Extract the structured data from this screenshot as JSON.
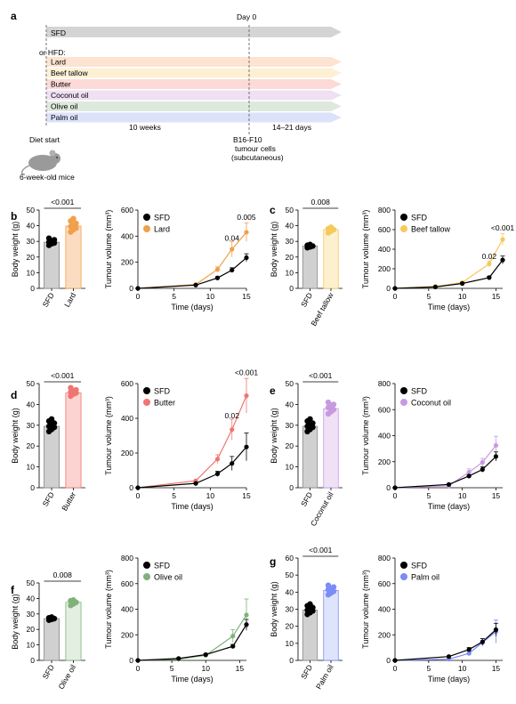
{
  "panel_a": {
    "label": "a",
    "day0": "Day 0",
    "sfd": "SFD",
    "or_hfd": "or HFD:",
    "diets": [
      "Lard",
      "Beef tallow",
      "Butter",
      "Coconut oil",
      "Olive oil",
      "Palm oil"
    ],
    "weeks": "10 weeks",
    "days": "14–21 days",
    "diet_start": "Diet start",
    "mice": "6-week-old mice",
    "tumour": [
      "B16-F10",
      "tumour cells",
      "(subcutaneous)"
    ],
    "colors": {
      "sfd": "#d4d4d4",
      "Lard": "#fce3d2",
      "Beef tallow": "#fdf0d5",
      "Butter": "#fcdad7",
      "Coconut oil": "#f0e0f4",
      "Olive oil": "#dde9dc",
      "Palm oil": "#dde2fb"
    }
  },
  "chart_data": [
    {
      "panel": "b",
      "type": "bar",
      "ylabel": "Body weight (g)",
      "ylim": [
        0,
        50
      ],
      "yticks": [
        0,
        10,
        20,
        30,
        40,
        50
      ],
      "categories": [
        "SFD",
        "Lard"
      ],
      "values": [
        29.5,
        39.8
      ],
      "errors": [
        1.5,
        1.8
      ],
      "color": "#f0a04a",
      "fill": "#fcdcc0",
      "pvalue": "<0.001",
      "points": [
        [
          27.5,
          28.5,
          29,
          29.5,
          30,
          31,
          32
        ],
        [
          36,
          37.5,
          38.5,
          39.5,
          40.5,
          41.5,
          43,
          44.5
        ]
      ]
    },
    {
      "panel": "b",
      "type": "line",
      "xlabel": "Time (days)",
      "ylabel": "Tumour volume (mm³)",
      "ylim": [
        0,
        600
      ],
      "yticks": [
        0,
        200,
        400,
        600
      ],
      "xlim": [
        0,
        15
      ],
      "xticks": [
        0,
        5,
        10,
        15
      ],
      "series": [
        {
          "name": "SFD",
          "color": "#000000",
          "x": [
            0,
            8,
            11,
            13,
            15
          ],
          "y": [
            0,
            25,
            80,
            140,
            235
          ],
          "err": [
            0,
            5,
            10,
            18,
            30
          ]
        },
        {
          "name": "Lard",
          "color": "#f0a04a",
          "x": [
            0,
            8,
            11,
            13,
            15
          ],
          "y": [
            0,
            30,
            145,
            300,
            430
          ],
          "err": [
            0,
            5,
            20,
            60,
            70
          ]
        }
      ],
      "annotations": [
        {
          "text": "0.04",
          "x": 13,
          "y": 365
        },
        {
          "text": "0.005",
          "x": 15,
          "y": 525
        }
      ]
    },
    {
      "panel": "c",
      "type": "bar",
      "ylabel": "Body weight (g)",
      "ylim": [
        0,
        50
      ],
      "yticks": [
        0,
        10,
        20,
        30,
        40,
        50
      ],
      "categories": [
        "SFD",
        "Beef tallow"
      ],
      "values": [
        27,
        37.5
      ],
      "errors": [
        1,
        1.5
      ],
      "color": "#f5c95a",
      "fill": "#fdf0cf",
      "pvalue": "0.008",
      "points": [
        [
          26,
          26.5,
          27,
          27.5,
          28
        ],
        [
          35.5,
          36.5,
          37.5,
          38,
          39
        ]
      ]
    },
    {
      "panel": "c",
      "type": "line",
      "xlabel": "Time (days)",
      "ylabel": "Tumour volume (mm³)",
      "ylim": [
        0,
        800
      ],
      "yticks": [
        0,
        200,
        400,
        600,
        800
      ],
      "xlim": [
        0,
        16
      ],
      "xticks": [
        0,
        5,
        10,
        15
      ],
      "series": [
        {
          "name": "SFD",
          "color": "#000000",
          "x": [
            0,
            6,
            10,
            14,
            16
          ],
          "y": [
            0,
            15,
            50,
            110,
            290
          ],
          "err": [
            0,
            5,
            10,
            15,
            40
          ]
        },
        {
          "name": "Beef tallow",
          "color": "#f5c95a",
          "x": [
            0,
            6,
            10,
            14,
            16
          ],
          "y": [
            0,
            20,
            60,
            250,
            500
          ],
          "err": [
            0,
            5,
            10,
            30,
            60
          ]
        }
      ],
      "annotations": [
        {
          "text": "0.02",
          "x": 14,
          "y": 300
        },
        {
          "text": "<0.001",
          "x": 16,
          "y": 590
        }
      ]
    },
    {
      "panel": "d",
      "type": "bar",
      "ylabel": "Body weight (g)",
      "ylim": [
        0,
        50
      ],
      "yticks": [
        0,
        10,
        20,
        30,
        40,
        50
      ],
      "categories": [
        "SFD",
        "Butter"
      ],
      "values": [
        29.5,
        45.5
      ],
      "errors": [
        1.5,
        1
      ],
      "color": "#f07570",
      "fill": "#fcd3d1",
      "pvalue": "<0.001",
      "points": [
        [
          27,
          28,
          29,
          29.5,
          30,
          31,
          32,
          33
        ],
        [
          44,
          45,
          45.5,
          46,
          46.5,
          47,
          48
        ]
      ]
    },
    {
      "panel": "d",
      "type": "line",
      "xlabel": "Time (days)",
      "ylabel": "Tumour volume (mm³)",
      "ylim": [
        0,
        600
      ],
      "yticks": [
        0,
        200,
        400,
        600
      ],
      "xlim": [
        0,
        15
      ],
      "xticks": [
        0,
        5,
        10,
        15
      ],
      "series": [
        {
          "name": "SFD",
          "color": "#000000",
          "x": [
            0,
            8,
            11,
            13,
            15
          ],
          "y": [
            0,
            25,
            80,
            140,
            235
          ],
          "err": [
            0,
            5,
            15,
            40,
            80
          ]
        },
        {
          "name": "Butter",
          "color": "#f07570",
          "x": [
            0,
            8,
            11,
            13,
            15
          ],
          "y": [
            0,
            40,
            165,
            335,
            530
          ],
          "err": [
            0,
            5,
            25,
            60,
            100
          ]
        }
      ],
      "annotations": [
        {
          "text": "0.02",
          "x": 13,
          "y": 400
        },
        {
          "text": "<0.001",
          "x": 15,
          "y": 650
        }
      ]
    },
    {
      "panel": "e",
      "type": "bar",
      "ylabel": "Body weight (g)",
      "ylim": [
        0,
        50
      ],
      "yticks": [
        0,
        10,
        20,
        30,
        40,
        50
      ],
      "categories": [
        "SFD",
        "Coconut oil"
      ],
      "values": [
        29.5,
        38
      ],
      "errors": [
        1.5,
        1.5
      ],
      "color": "#c79ae0",
      "fill": "#f0e1f7",
      "pvalue": "<0.001",
      "points": [
        [
          27,
          28,
          29,
          29.5,
          30,
          31,
          32,
          33
        ],
        [
          35.5,
          36.5,
          37.5,
          38.5,
          39.5,
          40,
          41
        ]
      ]
    },
    {
      "panel": "e",
      "type": "line",
      "xlabel": "Time (days)",
      "ylabel": "Tumour volume (mm³)",
      "ylim": [
        0,
        800
      ],
      "yticks": [
        0,
        200,
        400,
        600,
        800
      ],
      "xlim": [
        0,
        16
      ],
      "xticks": [
        0,
        5,
        10,
        15
      ],
      "series": [
        {
          "name": "SFD",
          "color": "#000000",
          "x": [
            0,
            8,
            11,
            13,
            15
          ],
          "y": [
            0,
            25,
            90,
            140,
            240
          ],
          "err": [
            0,
            5,
            10,
            20,
            35
          ]
        },
        {
          "name": "Coconut oil",
          "color": "#c79ae0",
          "x": [
            0,
            8,
            11,
            13,
            15
          ],
          "y": [
            0,
            15,
            120,
            195,
            325
          ],
          "err": [
            0,
            5,
            25,
            30,
            70
          ]
        }
      ],
      "annotations": []
    },
    {
      "panel": "f",
      "type": "bar",
      "ylabel": "Body weight (g)",
      "ylim": [
        0,
        50
      ],
      "yticks": [
        0,
        10,
        20,
        30,
        40,
        50
      ],
      "categories": [
        "SFD",
        "Olive oil"
      ],
      "values": [
        27,
        37.5
      ],
      "errors": [
        1,
        1.5
      ],
      "color": "#7fb27a",
      "fill": "#e3efe1",
      "pvalue": "0.008",
      "points": [
        [
          26,
          26.5,
          27,
          27.5,
          28
        ],
        [
          35.5,
          36.5,
          37.5,
          38.5,
          39
        ]
      ]
    },
    {
      "panel": "f",
      "type": "line",
      "xlabel": "Time (days)",
      "ylabel": "Tumour volume (mm³)",
      "ylim": [
        0,
        800
      ],
      "yticks": [
        0,
        200,
        400,
        600,
        800
      ],
      "xlim": [
        0,
        16
      ],
      "xticks": [
        0,
        5,
        10,
        15
      ],
      "series": [
        {
          "name": "SFD",
          "color": "#000000",
          "x": [
            0,
            6,
            10,
            14,
            16
          ],
          "y": [
            0,
            15,
            45,
            110,
            280
          ],
          "err": [
            0,
            5,
            10,
            15,
            40
          ]
        },
        {
          "name": "Olive oil",
          "color": "#7fb27a",
          "x": [
            0,
            6,
            10,
            14,
            16
          ],
          "y": [
            0,
            10,
            40,
            190,
            355
          ],
          "err": [
            0,
            5,
            10,
            50,
            125
          ]
        }
      ],
      "annotations": []
    },
    {
      "panel": "g",
      "type": "bar",
      "ylabel": "Body weight (g)",
      "ylim": [
        0,
        60
      ],
      "yticks": [
        0,
        10,
        20,
        30,
        40,
        50,
        60
      ],
      "categories": [
        "SFD",
        "Palm oil"
      ],
      "values": [
        29.5,
        41
      ],
      "errors": [
        1.5,
        1.5
      ],
      "color": "#7a8cf5",
      "fill": "#dfe4fd",
      "pvalue": "<0.001",
      "points": [
        [
          27,
          28,
          29,
          29.5,
          30,
          31,
          32,
          33
        ],
        [
          38.5,
          39.5,
          40.5,
          41.5,
          42,
          43,
          44
        ]
      ]
    },
    {
      "panel": "g",
      "type": "line",
      "xlabel": "Time (days)",
      "ylabel": "Tumour volume (mm³)",
      "ylim": [
        0,
        800
      ],
      "yticks": [
        0,
        200,
        400,
        600,
        800
      ],
      "xlim": [
        0,
        16
      ],
      "xticks": [
        0,
        5,
        10,
        15
      ],
      "series": [
        {
          "name": "SFD",
          "color": "#000000",
          "x": [
            0,
            8,
            11,
            13,
            15
          ],
          "y": [
            0,
            30,
            85,
            145,
            240
          ],
          "err": [
            0,
            5,
            15,
            25,
            50
          ]
        },
        {
          "name": "Palm oil",
          "color": "#7a8cf5",
          "x": [
            0,
            8,
            11,
            13,
            15
          ],
          "y": [
            0,
            10,
            55,
            140,
            225
          ],
          "err": [
            0,
            5,
            15,
            30,
            90
          ]
        }
      ],
      "annotations": []
    }
  ]
}
